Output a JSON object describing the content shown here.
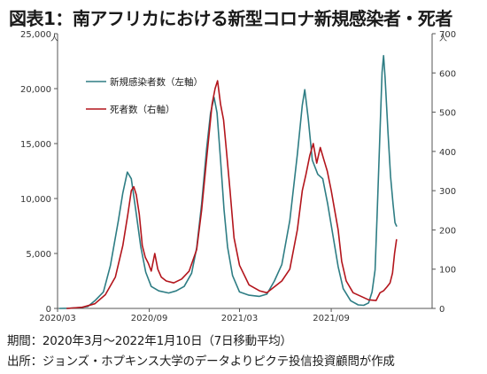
{
  "chart_data": {
    "type": "line",
    "title": "図表1：南アフリカにおける新型コロナ新規感染者・死者",
    "left_unit": "人",
    "right_unit": "人",
    "y_left": {
      "min": 0,
      "max": 25000,
      "ticks": [
        "0",
        "5,000",
        "10,000",
        "15,000",
        "20,000",
        "25,000"
      ]
    },
    "y_right": {
      "min": 0,
      "max": 700,
      "ticks": [
        "0",
        "100",
        "200",
        "300",
        "400",
        "500",
        "600",
        "700"
      ]
    },
    "x_axis": {
      "start": "2020-03-01",
      "end": "2022-01-10",
      "ticks": [
        {
          "date": "2020-03-01",
          "label": "2020/03"
        },
        {
          "date": "2020-09-01",
          "label": "2020/09"
        },
        {
          "date": "2021-03-01",
          "label": "2021/03"
        },
        {
          "date": "2021-09-01",
          "label": "2021/09"
        }
      ]
    },
    "legend_placement": "upper-left",
    "grid": false,
    "series": [
      {
        "name": "新規感染者数（左軸）",
        "axis": "left",
        "color": "#2e7d84",
        "points": [
          [
            "2020-03-05",
            0
          ],
          [
            "2020-03-25",
            20
          ],
          [
            "2020-04-15",
            80
          ],
          [
            "2020-05-01",
            180
          ],
          [
            "2020-05-15",
            700
          ],
          [
            "2020-06-01",
            1500
          ],
          [
            "2020-06-15",
            3900
          ],
          [
            "2020-07-01",
            8000
          ],
          [
            "2020-07-10",
            10500
          ],
          [
            "2020-07-19",
            12400
          ],
          [
            "2020-07-27",
            11800
          ],
          [
            "2020-08-05",
            8900
          ],
          [
            "2020-08-15",
            5600
          ],
          [
            "2020-08-25",
            3300
          ],
          [
            "2020-09-05",
            2000
          ],
          [
            "2020-09-20",
            1600
          ],
          [
            "2020-10-10",
            1400
          ],
          [
            "2020-10-25",
            1600
          ],
          [
            "2020-11-10",
            2000
          ],
          [
            "2020-11-25",
            3200
          ],
          [
            "2020-12-05",
            5500
          ],
          [
            "2020-12-15",
            9500
          ],
          [
            "2020-12-25",
            14500
          ],
          [
            "2021-01-02",
            17800
          ],
          [
            "2021-01-09",
            19200
          ],
          [
            "2021-01-15",
            17800
          ],
          [
            "2021-01-22",
            13500
          ],
          [
            "2021-01-29",
            9000
          ],
          [
            "2021-02-05",
            5600
          ],
          [
            "2021-02-15",
            3000
          ],
          [
            "2021-03-01",
            1500
          ],
          [
            "2021-03-20",
            1200
          ],
          [
            "2021-04-10",
            1100
          ],
          [
            "2021-04-25",
            1300
          ],
          [
            "2021-05-10",
            2500
          ],
          [
            "2021-05-25",
            4000
          ],
          [
            "2021-06-10",
            8000
          ],
          [
            "2021-06-25",
            14000
          ],
          [
            "2021-07-05",
            18500
          ],
          [
            "2021-07-10",
            19900
          ],
          [
            "2021-07-17",
            17200
          ],
          [
            "2021-07-25",
            13500
          ],
          [
            "2021-08-05",
            12200
          ],
          [
            "2021-08-15",
            11800
          ],
          [
            "2021-08-25",
            9500
          ],
          [
            "2021-09-05",
            6500
          ],
          [
            "2021-09-15",
            3800
          ],
          [
            "2021-09-25",
            1800
          ],
          [
            "2021-10-10",
            700
          ],
          [
            "2021-10-25",
            320
          ],
          [
            "2021-11-05",
            280
          ],
          [
            "2021-11-15",
            500
          ],
          [
            "2021-11-22",
            1500
          ],
          [
            "2021-11-28",
            3500
          ],
          [
            "2021-12-02",
            8500
          ],
          [
            "2021-12-07",
            15000
          ],
          [
            "2021-12-12",
            21500
          ],
          [
            "2021-12-15",
            23000
          ],
          [
            "2021-12-18",
            21000
          ],
          [
            "2021-12-24",
            16000
          ],
          [
            "2021-12-29",
            12000
          ],
          [
            "2022-01-03",
            9500
          ],
          [
            "2022-01-07",
            7800
          ],
          [
            "2022-01-10",
            7500
          ]
        ]
      },
      {
        "name": "死者数（右軸）",
        "axis": "right",
        "color": "#b3151c",
        "points": [
          [
            "2020-03-20",
            0
          ],
          [
            "2020-04-20",
            3
          ],
          [
            "2020-05-15",
            12
          ],
          [
            "2020-06-05",
            35
          ],
          [
            "2020-06-25",
            80
          ],
          [
            "2020-07-10",
            160
          ],
          [
            "2020-07-20",
            240
          ],
          [
            "2020-07-27",
            300
          ],
          [
            "2020-08-01",
            310
          ],
          [
            "2020-08-06",
            290
          ],
          [
            "2020-08-12",
            240
          ],
          [
            "2020-08-18",
            160
          ],
          [
            "2020-08-24",
            130
          ],
          [
            "2020-08-30",
            115
          ],
          [
            "2020-09-05",
            95
          ],
          [
            "2020-09-12",
            140
          ],
          [
            "2020-09-18",
            100
          ],
          [
            "2020-09-25",
            80
          ],
          [
            "2020-10-05",
            70
          ],
          [
            "2020-10-20",
            65
          ],
          [
            "2020-11-05",
            75
          ],
          [
            "2020-11-20",
            95
          ],
          [
            "2020-12-05",
            150
          ],
          [
            "2020-12-15",
            250
          ],
          [
            "2020-12-25",
            380
          ],
          [
            "2021-01-05",
            520
          ],
          [
            "2021-01-11",
            560
          ],
          [
            "2021-01-16",
            580
          ],
          [
            "2021-01-22",
            520
          ],
          [
            "2021-01-28",
            480
          ],
          [
            "2021-02-03",
            400
          ],
          [
            "2021-02-10",
            300
          ],
          [
            "2021-02-18",
            180
          ],
          [
            "2021-03-01",
            110
          ],
          [
            "2021-03-20",
            60
          ],
          [
            "2021-04-10",
            45
          ],
          [
            "2021-04-25",
            40
          ],
          [
            "2021-05-10",
            55
          ],
          [
            "2021-05-25",
            70
          ],
          [
            "2021-06-10",
            100
          ],
          [
            "2021-06-25",
            200
          ],
          [
            "2021-07-05",
            300
          ],
          [
            "2021-07-12",
            340
          ],
          [
            "2021-07-20",
            390
          ],
          [
            "2021-07-27",
            420
          ],
          [
            "2021-08-03",
            370
          ],
          [
            "2021-08-10",
            410
          ],
          [
            "2021-08-17",
            380
          ],
          [
            "2021-08-24",
            350
          ],
          [
            "2021-09-01",
            300
          ],
          [
            "2021-09-08",
            250
          ],
          [
            "2021-09-15",
            200
          ],
          [
            "2021-09-22",
            120
          ],
          [
            "2021-10-01",
            70
          ],
          [
            "2021-10-15",
            40
          ],
          [
            "2021-11-01",
            30
          ],
          [
            "2021-11-15",
            22
          ],
          [
            "2021-11-30",
            20
          ],
          [
            "2021-12-08",
            40
          ],
          [
            "2021-12-15",
            45
          ],
          [
            "2021-12-22",
            55
          ],
          [
            "2021-12-28",
            65
          ],
          [
            "2022-01-02",
            90
          ],
          [
            "2022-01-06",
            140
          ],
          [
            "2022-01-10",
            175
          ]
        ]
      }
    ]
  },
  "footnotes": {
    "period": "期間：2020年3月～2022年1月10日（7日移動平均）",
    "source": "出所：ジョンズ・ホプキンス大学のデータよりピクテ投信投資顧問が作成"
  }
}
